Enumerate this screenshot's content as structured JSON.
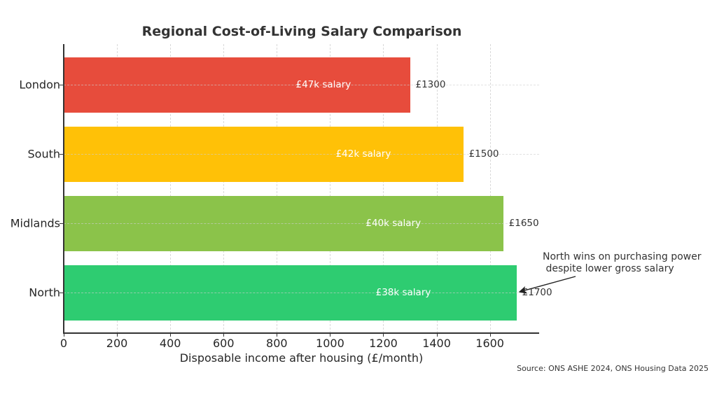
{
  "chart_data": {
    "type": "bar",
    "orientation": "horizontal",
    "title": "Regional Cost-of-Living Salary Comparison",
    "xlabel": "Disposable income after housing (£/month)",
    "ylabel": "",
    "categories": [
      "London",
      "South",
      "Midlands",
      "North"
    ],
    "values": [
      1300,
      1500,
      1650,
      1700
    ],
    "bar_labels": [
      "£47k salary",
      "£42k salary",
      "£40k salary",
      "£38k salary"
    ],
    "value_labels": [
      "£1300",
      "£1500",
      "£1650",
      "£1700"
    ],
    "colors": [
      "#e74c3c",
      "#ffc107",
      "#8bc34a",
      "#2ecc71"
    ],
    "xlim": [
      0,
      1785
    ],
    "xticks": [
      "0",
      "200",
      "400",
      "600",
      "800",
      "1000",
      "1200",
      "1400",
      "1600"
    ],
    "grid": true,
    "legend": null,
    "annotation": {
      "text": "North wins on purchasing power\n despite lower gross salary",
      "target_category": "North",
      "target_value": 1700
    },
    "source": "Source: ONS ASHE 2024, ONS Housing Data 2025"
  }
}
